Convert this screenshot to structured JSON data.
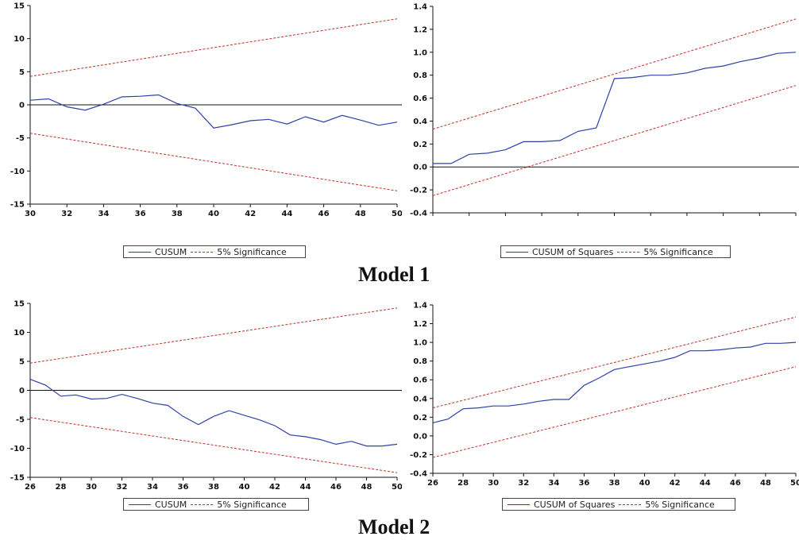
{
  "colors": {
    "cusum_line": "#3040a8",
    "significance": "#c0302a",
    "axis": "#111111"
  },
  "model_titles": [
    "Model 1",
    "Model 2"
  ],
  "legends": {
    "cusum": [
      "CUSUM",
      "5% Significance"
    ],
    "cusum_sq": [
      "CUSUM of Squares",
      "5% Significance"
    ]
  },
  "chart_data": [
    {
      "id": "m1-cusum",
      "type": "line",
      "model": "Model 1",
      "title": "",
      "xlabel": "",
      "ylabel": "",
      "xlim": [
        30,
        50
      ],
      "ylim": [
        -15,
        15
      ],
      "xticks": [
        30,
        32,
        34,
        36,
        38,
        40,
        42,
        44,
        46,
        48,
        50
      ],
      "yticks": [
        15,
        10,
        5,
        0,
        -5,
        -10,
        -15
      ],
      "grid": false,
      "legend_position": "bottom",
      "zero_line": true,
      "x": [
        30,
        31,
        32,
        33,
        34,
        35,
        36,
        37,
        38,
        39,
        40,
        41,
        42,
        43,
        44,
        45,
        46,
        47,
        48,
        49,
        50
      ],
      "series": [
        {
          "name": "CUSUM",
          "style": "solid",
          "values": [
            0.7,
            0.9,
            -0.3,
            -0.8,
            0.1,
            1.2,
            1.3,
            1.5,
            0.2,
            -0.5,
            -3.5,
            -3.0,
            -2.4,
            -2.2,
            -2.9,
            -1.8,
            -2.6,
            -1.6,
            -2.3,
            -3.1,
            -2.6
          ]
        },
        {
          "name": "5% Significance",
          "style": "dashed",
          "x": [
            30,
            50
          ],
          "values": [
            4.3,
            13.0
          ]
        },
        {
          "name": "5% Significance (lower)",
          "style": "dashed",
          "x": [
            30,
            50
          ],
          "values": [
            -4.3,
            -13.0
          ]
        }
      ]
    },
    {
      "id": "m1-cusumsq",
      "type": "line",
      "model": "Model 1",
      "title": "",
      "xlabel": "",
      "ylabel": "",
      "xlim": [
        30,
        50
      ],
      "ylim": [
        -0.4,
        1.4
      ],
      "xticks": [
        30,
        32,
        34,
        36,
        38,
        40,
        42,
        44,
        46,
        48,
        50
      ],
      "yticks": [
        "1.4",
        "1.2",
        "1.0",
        "0.8",
        "0.6",
        "0.4",
        "0.2",
        "0.0",
        "-0.2",
        "-0.4"
      ],
      "grid": false,
      "legend_position": "bottom",
      "zero_line": true,
      "x": [
        30,
        31,
        32,
        33,
        34,
        35,
        36,
        37,
        38,
        39,
        40,
        41,
        42,
        43,
        44,
        45,
        46,
        47,
        48,
        49,
        50
      ],
      "series": [
        {
          "name": "CUSUM of Squares",
          "style": "solid",
          "values": [
            0.03,
            0.03,
            0.11,
            0.12,
            0.15,
            0.22,
            0.22,
            0.23,
            0.31,
            0.34,
            0.77,
            0.78,
            0.8,
            0.8,
            0.82,
            0.86,
            0.88,
            0.92,
            0.95,
            0.99,
            1.0
          ]
        },
        {
          "name": "5% Significance",
          "style": "dashed",
          "x": [
            30,
            50
          ],
          "values": [
            0.33,
            1.29
          ]
        },
        {
          "name": "5% Significance (lower)",
          "style": "dashed",
          "x": [
            30,
            50
          ],
          "values": [
            -0.25,
            0.71
          ]
        }
      ]
    },
    {
      "id": "m2-cusum",
      "type": "line",
      "model": "Model 2",
      "title": "",
      "xlabel": "",
      "ylabel": "",
      "xlim": [
        26,
        50
      ],
      "ylim": [
        -15,
        15
      ],
      "xticks": [
        26,
        28,
        30,
        32,
        34,
        36,
        38,
        40,
        42,
        44,
        46,
        48,
        50
      ],
      "yticks": [
        15,
        10,
        5,
        0,
        -5,
        -10,
        -15
      ],
      "grid": false,
      "legend_position": "bottom",
      "zero_line": true,
      "x": [
        26,
        27,
        28,
        29,
        30,
        31,
        32,
        33,
        34,
        35,
        36,
        37,
        38,
        39,
        40,
        41,
        42,
        43,
        44,
        45,
        46,
        47,
        48,
        49,
        50
      ],
      "series": [
        {
          "name": "CUSUM",
          "style": "solid",
          "values": [
            1.9,
            0.9,
            -1.0,
            -0.8,
            -1.5,
            -1.4,
            -0.7,
            -1.4,
            -2.2,
            -2.6,
            -4.5,
            -5.9,
            -4.5,
            -3.5,
            -4.3,
            -5.1,
            -6.1,
            -7.7,
            -8.0,
            -8.5,
            -9.3,
            -8.8,
            -9.6,
            -9.6,
            -9.3
          ]
        },
        {
          "name": "5% Significance",
          "style": "dashed",
          "x": [
            26,
            50
          ],
          "values": [
            4.7,
            14.2
          ]
        },
        {
          "name": "5% Significance (lower)",
          "style": "dashed",
          "x": [
            26,
            50
          ],
          "values": [
            -4.7,
            -14.2
          ]
        }
      ]
    },
    {
      "id": "m2-cusumsq",
      "type": "line",
      "model": "Model 2",
      "title": "",
      "xlabel": "",
      "ylabel": "",
      "xlim": [
        26,
        50
      ],
      "ylim": [
        -0.4,
        1.4
      ],
      "xticks": [
        26,
        28,
        30,
        32,
        34,
        36,
        38,
        40,
        42,
        44,
        46,
        48,
        50
      ],
      "yticks": [
        "1.4",
        "1.2",
        "1.0",
        "0.8",
        "0.6",
        "0.4",
        "0.2",
        "0.0",
        "-0.2",
        "-0.4"
      ],
      "grid": false,
      "legend_position": "bottom",
      "zero_line": false,
      "x": [
        26,
        27,
        28,
        29,
        30,
        31,
        32,
        33,
        34,
        35,
        36,
        37,
        38,
        39,
        40,
        41,
        42,
        43,
        44,
        45,
        46,
        47,
        48,
        49,
        50
      ],
      "series": [
        {
          "name": "CUSUM of Squares",
          "style": "solid",
          "values": [
            0.14,
            0.18,
            0.29,
            0.3,
            0.32,
            0.32,
            0.34,
            0.37,
            0.39,
            0.39,
            0.54,
            0.62,
            0.71,
            0.74,
            0.77,
            0.8,
            0.84,
            0.91,
            0.91,
            0.92,
            0.94,
            0.95,
            0.99,
            0.99,
            1.0
          ]
        },
        {
          "name": "5% Significance",
          "style": "dashed",
          "x": [
            26,
            50
          ],
          "values": [
            0.3,
            1.27
          ]
        },
        {
          "name": "5% Significance (lower)",
          "style": "dashed",
          "x": [
            26,
            50
          ],
          "values": [
            -0.23,
            0.74
          ]
        }
      ]
    }
  ]
}
